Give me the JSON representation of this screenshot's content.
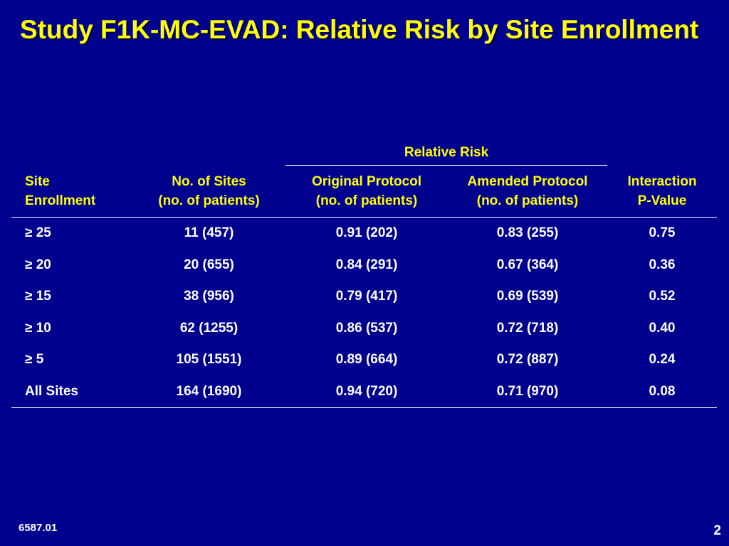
{
  "slide": {
    "title": "Study F1K-MC-EVAD: Relative Risk by Site Enrollment",
    "footer_code": "6587.01",
    "page_number": "2"
  },
  "table": {
    "group_header": "Relative Risk",
    "columns": [
      [
        "Site",
        "Enrollment"
      ],
      [
        "No. of Sites",
        "(no. of patients)"
      ],
      [
        "Original Protocol",
        "(no. of patients)"
      ],
      [
        "Amended Protocol",
        "(no. of patients)"
      ],
      [
        "Interaction",
        "P-Value"
      ]
    ],
    "rows": [
      [
        "≥ 25",
        "11 (457)",
        "0.91 (202)",
        "0.83 (255)",
        "0.75"
      ],
      [
        "≥ 20",
        "20 (655)",
        "0.84 (291)",
        "0.67 (364)",
        "0.36"
      ],
      [
        "≥ 15",
        "38 (956)",
        "0.79 (417)",
        "0.69 (539)",
        "0.52"
      ],
      [
        "≥ 10",
        "62 (1255)",
        "0.86 (537)",
        "0.72 (718)",
        "0.40"
      ],
      [
        "≥ 5",
        "105 (1551)",
        "0.89 (664)",
        "0.72 (887)",
        "0.24"
      ],
      [
        "All Sites",
        "164 (1690)",
        "0.94 (720)",
        "0.71 (970)",
        "0.08"
      ]
    ]
  }
}
